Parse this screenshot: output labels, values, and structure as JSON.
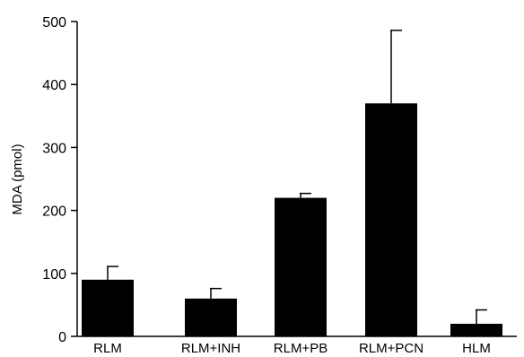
{
  "chart_data": {
    "type": "bar",
    "categories": [
      "RLM",
      "RLM+INH",
      "RLM+PB",
      "RLM+PCN",
      "HLM"
    ],
    "values": [
      90,
      60,
      220,
      370,
      20
    ],
    "errors": [
      21,
      16,
      7,
      116,
      22
    ],
    "ylabel": "MDA (pmol)",
    "xlabel": "",
    "ylim": [
      0,
      500
    ],
    "yticks": [
      0,
      100,
      200,
      300,
      400,
      500
    ],
    "grid": false,
    "bar_color": "#000000"
  }
}
